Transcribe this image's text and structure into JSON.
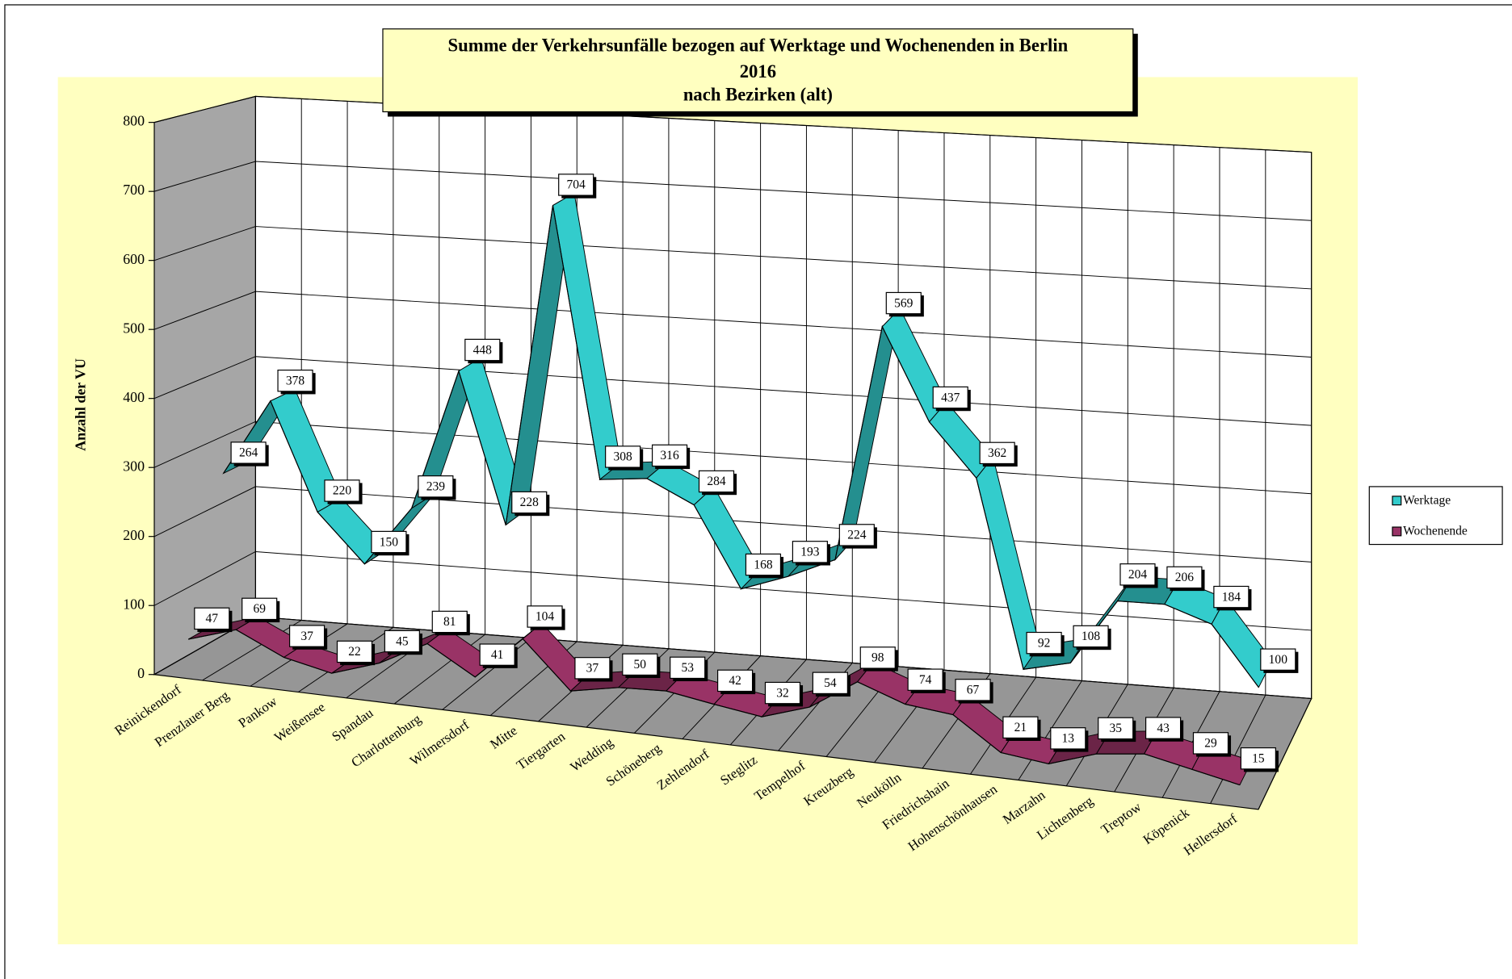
{
  "chart_data": {
    "type": "line3d",
    "title": [
      "Summe der Verkehrsunfälle bezogen auf Werktage und Wochenenden in Berlin",
      "2016",
      "nach Bezirken (alt)"
    ],
    "y_label": "Anzahl der VU",
    "categories": [
      "Reinickendorf",
      "Prenzlauer Berg",
      "Pankow",
      "Weißensee",
      "Spandau",
      "Charlottenburg",
      "Wilmersdorf",
      "Mitte",
      "Tiergarten",
      "Wedding",
      "Schöneberg",
      "Zehlendorf",
      "Steglitz",
      "Tempelhof",
      "Kreuzberg",
      "Neukölln",
      "Friedrichshain",
      "Hohenschönhausen",
      "Marzahn",
      "Lichtenberg",
      "Treptow",
      "Köpenick",
      "Hellersdorf"
    ],
    "series": [
      {
        "name": "Werktage",
        "color": "#33cccc",
        "values": [
          264,
          378,
          220,
          150,
          239,
          448,
          228,
          704,
          308,
          316,
          284,
          168,
          193,
          224,
          569,
          437,
          362,
          92,
          108,
          204,
          206,
          184,
          100
        ]
      },
      {
        "name": "Wochenende",
        "color": "#993366",
        "values": [
          47,
          69,
          37,
          22,
          45,
          81,
          41,
          104,
          37,
          50,
          53,
          42,
          32,
          54,
          98,
          74,
          67,
          21,
          13,
          35,
          43,
          29,
          15
        ]
      }
    ],
    "ylim": [
      0,
      800
    ],
    "yticks": [
      0,
      100,
      200,
      300,
      400,
      500,
      600,
      700,
      800
    ],
    "grid": true,
    "legend": "right"
  }
}
